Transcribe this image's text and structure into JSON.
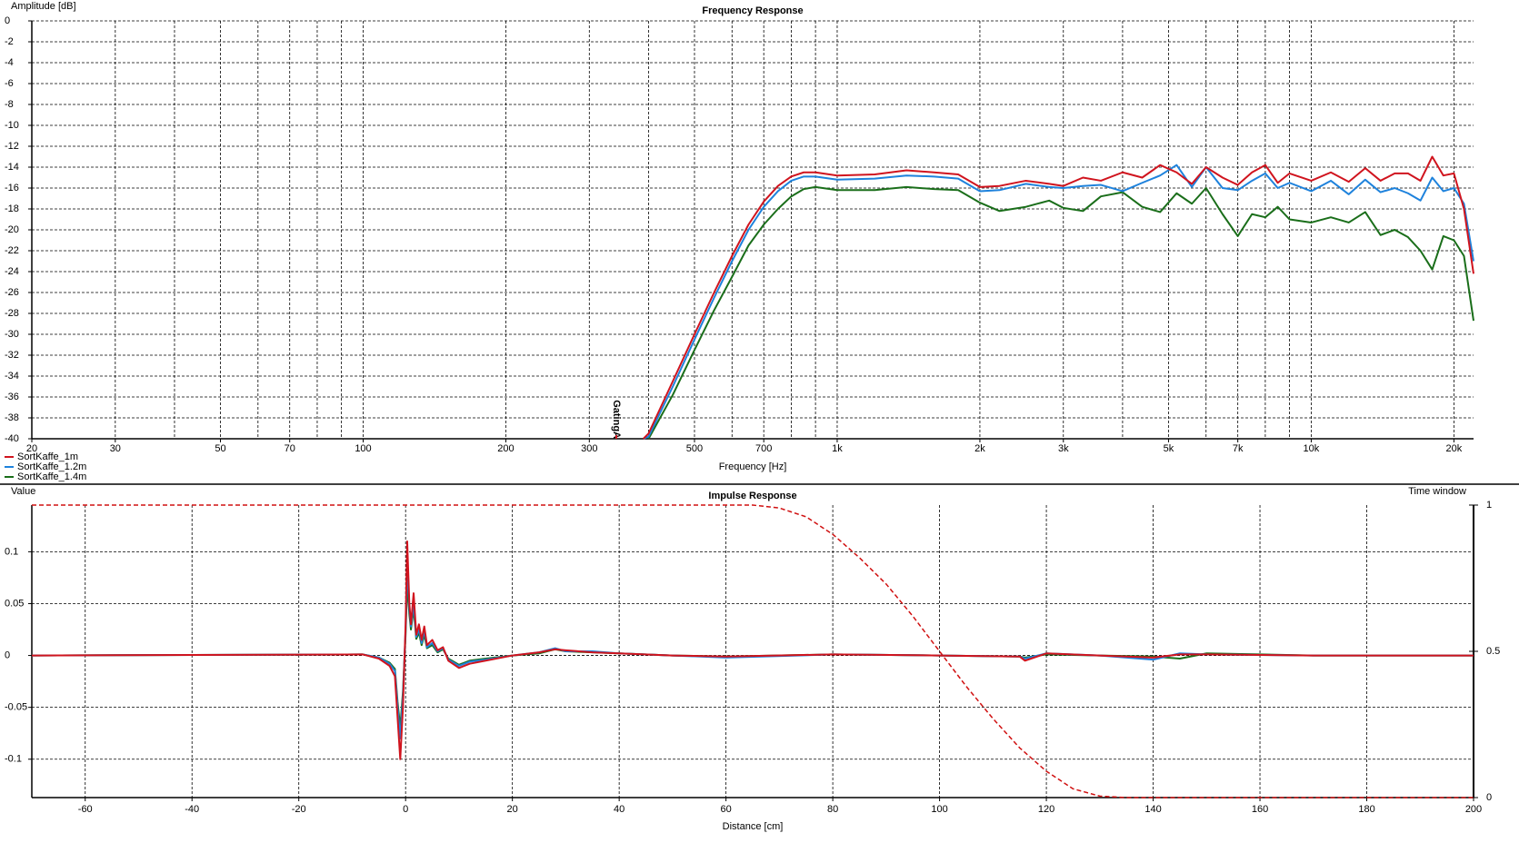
{
  "chart_data": [
    {
      "type": "line",
      "title": "Frequency Response",
      "x_label": "Frequency [Hz]",
      "y_label": "Amplitude [dB]",
      "xscale": "log",
      "grid": true,
      "legend": "bottom-left",
      "xlim": [
        20,
        22000
      ],
      "xticks": [
        20,
        30,
        50,
        70,
        100,
        200,
        300,
        500,
        700,
        {
          "value": 1000,
          "label": "1k"
        },
        {
          "value": 2000,
          "label": "2k"
        },
        {
          "value": 3000,
          "label": "3k"
        },
        {
          "value": 5000,
          "label": "5k"
        },
        {
          "value": 7000,
          "label": "7k"
        },
        {
          "value": 10000,
          "label": "10k"
        },
        {
          "value": 20000,
          "label": "20k"
        }
      ],
      "x_minor_ticks": [
        40,
        60,
        80,
        90,
        400,
        600,
        800,
        900,
        4000,
        6000,
        8000,
        9000
      ],
      "ylim": [
        -40,
        0
      ],
      "yticks": [
        -40,
        -38,
        -36,
        -34,
        -32,
        -30,
        -28,
        -26,
        -24,
        -22,
        -20,
        -18,
        -16,
        -14,
        -12,
        -10,
        -8,
        -6,
        -4,
        -2,
        0
      ],
      "annotations": [
        {
          "text": "GatingA",
          "x": 342,
          "color": "#d0141e"
        }
      ],
      "x": [
        390,
        400,
        450,
        500,
        550,
        600,
        650,
        700,
        750,
        800,
        850,
        900,
        1000,
        1200,
        1400,
        1600,
        1800,
        2000,
        2200,
        2500,
        2800,
        3000,
        3300,
        3600,
        4000,
        4400,
        4800,
        5200,
        5600,
        6000,
        6500,
        7000,
        7500,
        8000,
        8500,
        9000,
        10000,
        11000,
        12000,
        13000,
        14000,
        15000,
        16000,
        17000,
        18000,
        19000,
        20000,
        21000,
        22000
      ],
      "series": [
        {
          "name": "SortKaffe_1m",
          "color": "#d0141e",
          "values": [
            -40,
            -39.5,
            -34.5,
            -30,
            -26,
            -22.5,
            -19.5,
            -17.3,
            -15.8,
            -14.9,
            -14.5,
            -14.5,
            -14.8,
            -14.7,
            -14.3,
            -14.5,
            -14.7,
            -15.9,
            -15.8,
            -15.3,
            -15.6,
            -15.8,
            -15,
            -15.3,
            -14.5,
            -15,
            -13.8,
            -14.5,
            -15.6,
            -14,
            -15,
            -15.7,
            -14.5,
            -13.8,
            -15.5,
            -14.6,
            -15.3,
            -14.5,
            -15.4,
            -14.1,
            -15.3,
            -14.6,
            -14.6,
            -15.3,
            -13,
            -14.8,
            -14.6,
            -18,
            -24.2
          ]
        },
        {
          "name": "SortKaffe_1.2m",
          "color": "#1e82dc",
          "values": [
            -40,
            -39.8,
            -35,
            -30.5,
            -26.5,
            -23,
            -20,
            -17.8,
            -16.3,
            -15.3,
            -14.9,
            -14.9,
            -15.2,
            -15.1,
            -14.8,
            -14.9,
            -15.1,
            -16.3,
            -16.2,
            -15.6,
            -15.9,
            -16,
            -15.8,
            -15.7,
            -16.3,
            -15.5,
            -14.8,
            -13.8,
            -15.9,
            -14,
            -16,
            -16.2,
            -15.3,
            -14.6,
            -16,
            -15.5,
            -16.3,
            -15.3,
            -16.6,
            -15.2,
            -16.4,
            -16,
            -16.5,
            -17.2,
            -15,
            -16.3,
            -16,
            -17.5,
            -23
          ]
        },
        {
          "name": "SortKaffe_1.4m",
          "color": "#1a6e1a",
          "values": [
            null,
            -40,
            -35.8,
            -31.5,
            -27.7,
            -24.5,
            -21.5,
            -19.5,
            -18,
            -16.8,
            -16.1,
            -15.9,
            -16.2,
            -16.2,
            -15.9,
            -16.1,
            -16.2,
            -17.4,
            -18.2,
            -17.8,
            -17.2,
            -17.9,
            -18.2,
            -16.8,
            -16.4,
            -17.8,
            -18.3,
            -16.5,
            -17.5,
            -16,
            -18.5,
            -20.6,
            -18.5,
            -18.8,
            -17.8,
            -19,
            -19.3,
            -18.8,
            -19.3,
            -18.3,
            -20.5,
            -20,
            -20.7,
            -22,
            -23.8,
            -20.6,
            -21,
            -22.5,
            -28.7
          ]
        }
      ]
    },
    {
      "type": "line",
      "title": "Impulse Response",
      "x_label": "Distance [cm]",
      "y_label": "Value",
      "y2_label": "Time window",
      "xscale": "linear",
      "grid": true,
      "xlim": [
        -70,
        200
      ],
      "xticks": [
        -60,
        -40,
        -20,
        0,
        20,
        40,
        60,
        80,
        100,
        120,
        140,
        160,
        180,
        200
      ],
      "ylim": [
        -0.137,
        0.145
      ],
      "yticks": [
        -0.1,
        -0.05,
        0,
        0.05,
        0.1
      ],
      "y2lim": [
        0,
        1
      ],
      "y2ticks": [
        0,
        0.5,
        1
      ],
      "x": [
        -70,
        -8,
        -5,
        -3,
        -2,
        -1.5,
        -1,
        -0.5,
        0,
        0.3,
        0.7,
        1,
        1.5,
        2,
        2.5,
        3,
        3.5,
        4,
        5,
        6,
        7,
        8,
        10,
        12,
        15,
        20,
        25,
        28,
        30,
        35,
        40,
        50,
        60,
        80,
        100,
        115,
        116,
        120,
        130,
        140,
        145,
        150,
        170,
        200
      ],
      "series": [
        {
          "color": "#d0141e",
          "values": [
            0,
            0.001,
            -0.003,
            -0.01,
            -0.02,
            -0.06,
            -0.1,
            -0.05,
            0.03,
            0.11,
            0.05,
            0.03,
            0.06,
            0.02,
            0.03,
            0.015,
            0.028,
            0.01,
            0.015,
            0.005,
            0.008,
            -0.005,
            -0.012,
            -0.008,
            -0.005,
            0,
            0.003,
            0.006,
            0.005,
            0.003,
            0.002,
            0,
            -0.001,
            0.001,
            0,
            -0.001,
            -0.005,
            0.002,
            0,
            -0.002,
            0.001,
            0.001,
            0,
            0
          ]
        },
        {
          "color": "#1e82dc",
          "values": [
            0,
            0.001,
            -0.002,
            -0.008,
            -0.015,
            -0.05,
            -0.08,
            -0.04,
            0.025,
            0.09,
            0.045,
            0.028,
            0.05,
            0.018,
            0.025,
            0.012,
            0.024,
            0.008,
            0.012,
            0.004,
            0.007,
            -0.004,
            -0.01,
            -0.006,
            -0.004,
            0,
            0.003,
            0.007,
            0.004,
            0.004,
            0.002,
            0,
            -0.002,
            0.001,
            0,
            -0.001,
            -0.003,
            0.002,
            0,
            -0.004,
            0.002,
            0.001,
            0,
            0
          ]
        },
        {
          "color": "#1a6e1a",
          "values": [
            0,
            0.001,
            -0.002,
            -0.007,
            -0.013,
            -0.045,
            -0.07,
            -0.035,
            0.02,
            0.07,
            0.04,
            0.025,
            0.045,
            0.016,
            0.022,
            0.01,
            0.02,
            0.007,
            0.01,
            0.003,
            0.006,
            -0.003,
            -0.009,
            -0.005,
            -0.003,
            0,
            0.002,
            0.006,
            0.004,
            0.003,
            0.002,
            0,
            -0.001,
            0.001,
            0,
            -0.001,
            -0.002,
            0.001,
            0,
            -0.001,
            -0.003,
            0.002,
            0,
            0
          ]
        },
        {
          "color": "#d01010",
          "axis": "y2",
          "dash": true,
          "x": [
            -70,
            0,
            65,
            70,
            75,
            80,
            85,
            90,
            95,
            100,
            105,
            110,
            115,
            120,
            125,
            130,
            135,
            200
          ],
          "values": [
            1,
            1,
            1,
            0.99,
            0.96,
            0.9,
            0.82,
            0.73,
            0.62,
            0.5,
            0.38,
            0.27,
            0.17,
            0.09,
            0.03,
            0.005,
            0,
            0
          ]
        }
      ]
    }
  ]
}
